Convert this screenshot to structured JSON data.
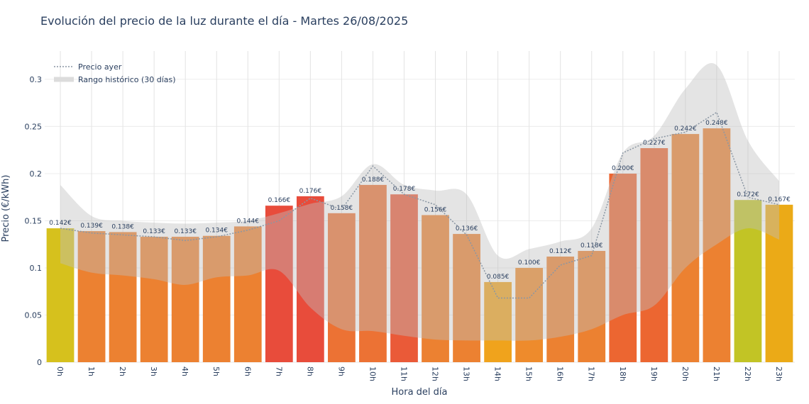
{
  "chart_data": {
    "type": "bar",
    "title": "Evolución del precio de la luz durante el día - Martes 26/08/2025",
    "xlabel": "Hora del día",
    "ylabel": "Precio (€/kWh)",
    "ylim": [
      0,
      0.33
    ],
    "yticks": [
      0,
      0.05,
      0.1,
      0.15,
      0.2,
      0.25,
      0.3
    ],
    "ytick_labels": [
      "0",
      "0.05",
      "0.1",
      "0.15",
      "0.2",
      "0.25",
      "0.3"
    ],
    "grid": true,
    "legend_position": "top-left",
    "categories": [
      "0h",
      "1h",
      "2h",
      "3h",
      "4h",
      "5h",
      "6h",
      "7h",
      "8h",
      "9h",
      "10h",
      "11h",
      "12h",
      "13h",
      "14h",
      "15h",
      "16h",
      "17h",
      "18h",
      "19h",
      "20h",
      "21h",
      "22h",
      "23h"
    ],
    "values": [
      0.142,
      0.139,
      0.138,
      0.133,
      0.133,
      0.134,
      0.144,
      0.166,
      0.176,
      0.158,
      0.188,
      0.178,
      0.156,
      0.136,
      0.085,
      0.1,
      0.112,
      0.118,
      0.2,
      0.227,
      0.242,
      0.248,
      0.172,
      0.167
    ],
    "bar_labels": [
      "0.142€",
      "0.139€",
      "0.138€",
      "0.133€",
      "0.133€",
      "0.134€",
      "0.144€",
      "0.166€",
      "0.176€",
      "0.158€",
      "0.188€",
      "0.178€",
      "0.156€",
      "0.136€",
      "0.085€",
      "0.100€",
      "0.112€",
      "0.118€",
      "0.200€",
      "0.227€",
      "0.242€",
      "0.248€",
      "0.172€",
      "0.167€"
    ],
    "bar_colors": [
      "#d6c11d",
      "#ec8131",
      "#ec8131",
      "#ec8131",
      "#ec8131",
      "#ec8131",
      "#ec8131",
      "#e84c3b",
      "#e84c3b",
      "#ec7234",
      "#ec7234",
      "#ea5a38",
      "#ec8131",
      "#ec8131",
      "#f0a31c",
      "#ee8b2c",
      "#ec8131",
      "#ec8131",
      "#ec6631",
      "#ec6631",
      "#ec8131",
      "#ec8131",
      "#c2c425",
      "#ebaa17"
    ],
    "series": [
      {
        "name": "Precio ayer",
        "style": "dotted-line",
        "color": "#8a96a3",
        "values": [
          0.142,
          0.137,
          0.135,
          0.133,
          0.129,
          0.133,
          0.14,
          0.15,
          0.174,
          0.162,
          0.208,
          0.178,
          0.167,
          0.135,
          0.068,
          0.068,
          0.103,
          0.113,
          0.222,
          0.237,
          0.244,
          0.265,
          0.175,
          0.167
        ]
      },
      {
        "name": "Rango histórico (30 días)",
        "style": "band",
        "color": "#d9d9d9",
        "upper": [
          0.188,
          0.155,
          0.15,
          0.148,
          0.147,
          0.148,
          0.15,
          0.158,
          0.168,
          0.176,
          0.21,
          0.188,
          0.182,
          0.178,
          0.113,
          0.12,
          0.128,
          0.142,
          0.222,
          0.24,
          0.29,
          0.315,
          0.235,
          0.192
        ],
        "lower": [
          0.105,
          0.095,
          0.092,
          0.088,
          0.082,
          0.09,
          0.092,
          0.097,
          0.058,
          0.035,
          0.033,
          0.028,
          0.024,
          0.023,
          0.023,
          0.023,
          0.027,
          0.035,
          0.05,
          0.06,
          0.1,
          0.125,
          0.142,
          0.13
        ]
      }
    ]
  }
}
